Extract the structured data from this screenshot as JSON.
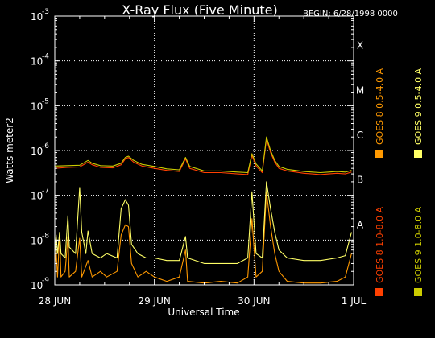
{
  "header": {
    "title": "X-Ray Flux (Five Minute)",
    "begin": "BEGIN: 6/28/1998 0000"
  },
  "chart_data": {
    "type": "line",
    "title": "X-Ray Flux (Five Minute)",
    "xlabel": "Universal Time",
    "ylabel": "Watts meter2",
    "y_scale": "log",
    "ylim": [
      1e-09,
      0.001
    ],
    "xlim": [
      "1998-06-28T00:00",
      "1998-07-01T00:00"
    ],
    "grid": "dotted vertical lines at day boundaries; dotted horizontal lines at 1e-8, 1e-7, 1e-6, 1e-5, 1e-4",
    "x_ticks": [
      "28 JUN",
      "29 JUN",
      "30 JUN",
      "1 JUL"
    ],
    "y_ticks": [
      {
        "base": "10",
        "exp": "-3"
      },
      {
        "base": "10",
        "exp": "-4"
      },
      {
        "base": "10",
        "exp": "-5"
      },
      {
        "base": "10",
        "exp": "-6"
      },
      {
        "base": "10",
        "exp": "-7"
      },
      {
        "base": "10",
        "exp": "-8"
      },
      {
        "base": "10",
        "exp": "-9"
      }
    ],
    "flare_classes": [
      {
        "label": "X",
        "value": 0.0001
      },
      {
        "label": "M",
        "value": 1e-05
      },
      {
        "label": "C",
        "value": 1e-06
      },
      {
        "label": "B",
        "value": 1e-07
      },
      {
        "label": "A",
        "value": 1e-08
      }
    ],
    "legend_placement": "right, vertical text",
    "series": [
      {
        "name": "GOES 8 1.0-8.0 A",
        "color": "#ff4000",
        "points": [
          [
            "1998-06-28T00:00",
            4e-07
          ],
          [
            "1998-06-28T03:00",
            4.2e-07
          ],
          [
            "1998-06-28T06:00",
            4.3e-07
          ],
          [
            "1998-06-28T08:00",
            5.5e-07
          ],
          [
            "1998-06-28T09:00",
            4.8e-07
          ],
          [
            "1998-06-28T11:00",
            4.2e-07
          ],
          [
            "1998-06-28T14:00",
            4.1e-07
          ],
          [
            "1998-06-28T16:00",
            4.8e-07
          ],
          [
            "1998-06-28T17:00",
            6.5e-07
          ],
          [
            "1998-06-28T17:45",
            7e-07
          ],
          [
            "1998-06-28T19:00",
            5.5e-07
          ],
          [
            "1998-06-28T21:00",
            4.5e-07
          ],
          [
            "1998-06-29T00:00",
            4e-07
          ],
          [
            "1998-06-29T03:00",
            3.6e-07
          ],
          [
            "1998-06-29T06:00",
            3.4e-07
          ],
          [
            "1998-06-29T07:30",
            6.5e-07
          ],
          [
            "1998-06-29T08:30",
            4e-07
          ],
          [
            "1998-06-29T12:00",
            3.2e-07
          ],
          [
            "1998-06-29T16:00",
            3.2e-07
          ],
          [
            "1998-06-29T20:00",
            3e-07
          ],
          [
            "1998-06-29T22:30",
            2.9e-07
          ],
          [
            "1998-06-29T23:30",
            7.8e-07
          ],
          [
            "1998-06-30T00:30",
            4.5e-07
          ],
          [
            "1998-06-30T02:00",
            3.2e-07
          ],
          [
            "1998-06-30T03:00",
            1.8e-06
          ],
          [
            "1998-06-30T04:00",
            9e-07
          ],
          [
            "1998-06-30T05:00",
            5.5e-07
          ],
          [
            "1998-06-30T06:00",
            4e-07
          ],
          [
            "1998-06-30T08:00",
            3.5e-07
          ],
          [
            "1998-06-30T10:00",
            3.3e-07
          ],
          [
            "1998-06-30T12:00",
            3.1e-07
          ],
          [
            "1998-06-30T14:00",
            3e-07
          ],
          [
            "1998-06-30T16:00",
            2.9e-07
          ],
          [
            "1998-06-30T18:00",
            3e-07
          ],
          [
            "1998-06-30T20:00",
            3.1e-07
          ],
          [
            "1998-06-30T22:00",
            3e-07
          ],
          [
            "1998-06-30T23:30",
            3.3e-07
          ]
        ]
      },
      {
        "name": "GOES 8 0.5-4.0 A",
        "color": "#ff9900",
        "points": [
          [
            "1998-06-28T00:00",
            3e-09
          ],
          [
            "1998-06-28T00:20",
            6e-09
          ],
          [
            "1998-06-28T00:40",
            1.5e-09
          ],
          [
            "1998-06-28T01:10",
            1.4e-08
          ],
          [
            "1998-06-28T01:30",
            1.5e-09
          ],
          [
            "1998-06-28T02:30",
            2e-09
          ],
          [
            "1998-06-28T03:10",
            1.2e-08
          ],
          [
            "1998-06-28T03:30",
            1.5e-09
          ],
          [
            "1998-06-28T05:00",
            2e-09
          ],
          [
            "1998-06-28T06:00",
            1.1e-08
          ],
          [
            "1998-06-28T06:30",
            1.5e-09
          ],
          [
            "1998-06-28T08:00",
            3.5e-09
          ],
          [
            "1998-06-28T09:00",
            1.5e-09
          ],
          [
            "1998-06-28T11:00",
            2e-09
          ],
          [
            "1998-06-28T12:30",
            1.5e-09
          ],
          [
            "1998-06-28T15:00",
            2e-09
          ],
          [
            "1998-06-28T16:00",
            1.3e-08
          ],
          [
            "1998-06-28T17:00",
            2.2e-08
          ],
          [
            "1998-06-28T17:45",
            2e-08
          ],
          [
            "1998-06-28T18:30",
            3e-09
          ],
          [
            "1998-06-28T20:00",
            1.5e-09
          ],
          [
            "1998-06-28T22:00",
            2e-09
          ],
          [
            "1998-06-29T00:00",
            1.5e-09
          ],
          [
            "1998-06-29T03:00",
            1.2e-09
          ],
          [
            "1998-06-29T06:00",
            1.5e-09
          ],
          [
            "1998-06-29T07:30",
            6e-09
          ],
          [
            "1998-06-29T08:00",
            1.2e-09
          ],
          [
            "1998-06-29T12:00",
            1.1e-09
          ],
          [
            "1998-06-29T16:00",
            1.2e-09
          ],
          [
            "1998-06-29T20:00",
            1.1e-09
          ],
          [
            "1998-06-29T22:30",
            1.5e-09
          ],
          [
            "1998-06-29T23:30",
            3e-08
          ],
          [
            "1998-06-30T00:30",
            1.5e-09
          ],
          [
            "1998-06-30T02:00",
            2e-09
          ],
          [
            "1998-06-30T03:00",
            1.2e-07
          ],
          [
            "1998-06-30T04:00",
            2e-08
          ],
          [
            "1998-06-30T05:00",
            5e-09
          ],
          [
            "1998-06-30T06:00",
            2e-09
          ],
          [
            "1998-06-30T08:00",
            1.2e-09
          ],
          [
            "1998-06-30T12:00",
            1.1e-09
          ],
          [
            "1998-06-30T16:00",
            1.1e-09
          ],
          [
            "1998-06-30T20:00",
            1.2e-09
          ],
          [
            "1998-06-30T22:00",
            1.5e-09
          ],
          [
            "1998-06-30T23:30",
            5e-09
          ]
        ]
      },
      {
        "name": "GOES 9 1.0-8.0 A",
        "color": "#cccc00",
        "points": [
          [
            "1998-06-28T00:00",
            4.5e-07
          ],
          [
            "1998-06-28T03:00",
            4.6e-07
          ],
          [
            "1998-06-28T06:00",
            4.7e-07
          ],
          [
            "1998-06-28T08:00",
            6e-07
          ],
          [
            "1998-06-28T09:00",
            5.2e-07
          ],
          [
            "1998-06-28T11:00",
            4.6e-07
          ],
          [
            "1998-06-28T14:00",
            4.5e-07
          ],
          [
            "1998-06-28T16:00",
            5.2e-07
          ],
          [
            "1998-06-28T17:00",
            7e-07
          ],
          [
            "1998-06-28T17:45",
            7.5e-07
          ],
          [
            "1998-06-28T19:00",
            6e-07
          ],
          [
            "1998-06-28T21:00",
            4.9e-07
          ],
          [
            "1998-06-29T00:00",
            4.4e-07
          ],
          [
            "1998-06-29T03:00",
            3.9e-07
          ],
          [
            "1998-06-29T06:00",
            3.7e-07
          ],
          [
            "1998-06-29T07:30",
            7e-07
          ],
          [
            "1998-06-29T08:30",
            4.4e-07
          ],
          [
            "1998-06-29T12:00",
            3.5e-07
          ],
          [
            "1998-06-29T16:00",
            3.5e-07
          ],
          [
            "1998-06-29T20:00",
            3.3e-07
          ],
          [
            "1998-06-29T22:30",
            3.2e-07
          ],
          [
            "1998-06-29T23:30",
            8.5e-07
          ],
          [
            "1998-06-30T00:30",
            5e-07
          ],
          [
            "1998-06-30T02:00",
            3.5e-07
          ],
          [
            "1998-06-30T03:00",
            2e-06
          ],
          [
            "1998-06-30T04:00",
            1e-06
          ],
          [
            "1998-06-30T05:00",
            6e-07
          ],
          [
            "1998-06-30T06:00",
            4.4e-07
          ],
          [
            "1998-06-30T08:00",
            3.8e-07
          ],
          [
            "1998-06-30T10:00",
            3.6e-07
          ],
          [
            "1998-06-30T12:00",
            3.4e-07
          ],
          [
            "1998-06-30T14:00",
            3.3e-07
          ],
          [
            "1998-06-30T16:00",
            3.2e-07
          ],
          [
            "1998-06-30T18:00",
            3.3e-07
          ],
          [
            "1998-06-30T20:00",
            3.4e-07
          ],
          [
            "1998-06-30T22:00",
            3.3e-07
          ],
          [
            "1998-06-30T23:30",
            3.6e-07
          ]
        ]
      },
      {
        "name": "GOES 9 0.5-4.0 A",
        "color": "#ffff66",
        "points": [
          [
            "1998-06-28T00:00",
            5e-09
          ],
          [
            "1998-06-28T00:20",
            1.3e-08
          ],
          [
            "1998-06-28T00:40",
            5e-09
          ],
          [
            "1998-06-28T01:10",
            1.5e-08
          ],
          [
            "1998-06-28T01:30",
            5e-09
          ],
          [
            "1998-06-28T02:30",
            4e-09
          ],
          [
            "1998-06-28T03:10",
            3.5e-08
          ],
          [
            "1998-06-28T03:30",
            7e-09
          ],
          [
            "1998-06-28T05:00",
            5e-09
          ],
          [
            "1998-06-28T06:00",
            1.5e-07
          ],
          [
            "1998-06-28T06:30",
            1.5e-08
          ],
          [
            "1998-06-28T07:30",
            5e-09
          ],
          [
            "1998-06-28T08:00",
            1.6e-08
          ],
          [
            "1998-06-28T09:00",
            5e-09
          ],
          [
            "1998-06-28T11:00",
            4e-09
          ],
          [
            "1998-06-28T12:30",
            5e-09
          ],
          [
            "1998-06-28T15:00",
            4e-09
          ],
          [
            "1998-06-28T16:00",
            5e-08
          ],
          [
            "1998-06-28T17:00",
            8e-08
          ],
          [
            "1998-06-28T17:45",
            6e-08
          ],
          [
            "1998-06-28T18:30",
            8e-09
          ],
          [
            "1998-06-28T20:00",
            5e-09
          ],
          [
            "1998-06-28T22:00",
            4e-09
          ],
          [
            "1998-06-29T00:00",
            4e-09
          ],
          [
            "1998-06-29T03:00",
            3.5e-09
          ],
          [
            "1998-06-29T06:00",
            3.5e-09
          ],
          [
            "1998-06-29T07:30",
            1.2e-08
          ],
          [
            "1998-06-29T08:00",
            4e-09
          ],
          [
            "1998-06-29T12:00",
            3e-09
          ],
          [
            "1998-06-29T16:00",
            3e-09
          ],
          [
            "1998-06-29T20:00",
            3e-09
          ],
          [
            "1998-06-29T22:30",
            4e-09
          ],
          [
            "1998-06-29T23:30",
            1.2e-07
          ],
          [
            "1998-06-30T00:30",
            5e-09
          ],
          [
            "1998-06-30T02:00",
            4e-09
          ],
          [
            "1998-06-30T03:00",
            2e-07
          ],
          [
            "1998-06-30T04:00",
            5e-08
          ],
          [
            "1998-06-30T05:00",
            1.5e-08
          ],
          [
            "1998-06-30T06:00",
            6e-09
          ],
          [
            "1998-06-30T08:00",
            4e-09
          ],
          [
            "1998-06-30T12:00",
            3.5e-09
          ],
          [
            "1998-06-30T16:00",
            3.5e-09
          ],
          [
            "1998-06-30T20:00",
            4e-09
          ],
          [
            "1998-06-30T22:00",
            4.5e-09
          ],
          [
            "1998-06-30T23:30",
            1.5e-08
          ]
        ]
      }
    ]
  }
}
